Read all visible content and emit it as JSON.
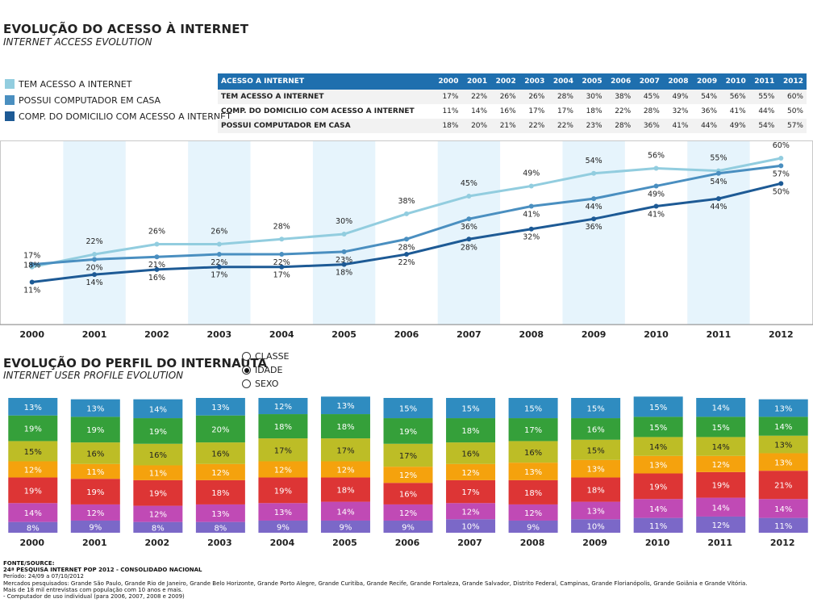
{
  "header": {
    "title": "EVOLUÇÃO DO ACESSO À INTERNET",
    "subtitle": "INTERNET ACCESS EVOLUTION"
  },
  "legend": [
    {
      "label": "TEM ACESSO A INTERNET",
      "color": "#92cddf"
    },
    {
      "label": "POSSUI COMPUTADOR EM CASA",
      "color": "#4a8fc0"
    },
    {
      "label": "COMP. DO DOMICILIO COM ACESSO A INTERNET",
      "color": "#1d5a95"
    }
  ],
  "table": {
    "header_label": "ACESSO A INTERNET",
    "years": [
      "2000",
      "2001",
      "2002",
      "2003",
      "2004",
      "2005",
      "2006",
      "2007",
      "2008",
      "2009",
      "2010",
      "2011",
      "2012"
    ],
    "rows": [
      {
        "label": "TEM ACESSO A INTERNET",
        "values": [
          "17%",
          "22%",
          "26%",
          "26%",
          "28%",
          "30%",
          "38%",
          "45%",
          "49%",
          "54%",
          "56%",
          "55%",
          "60%"
        ]
      },
      {
        "label": "COMP. DO DOMICILIO COM ACESSO A INTERNET",
        "values": [
          "11%",
          "14%",
          "16%",
          "17%",
          "17%",
          "18%",
          "22%",
          "28%",
          "32%",
          "36%",
          "41%",
          "44%",
          "50%"
        ]
      },
      {
        "label": "POSSUI COMPUTADOR EM CASA",
        "values": [
          "18%",
          "20%",
          "21%",
          "22%",
          "22%",
          "23%",
          "28%",
          "36%",
          "41%",
          "44%",
          "49%",
          "54%",
          "57%"
        ]
      }
    ]
  },
  "profile": {
    "title": "EVOLUÇÃO DO PERFIL DO INTERNAUTA",
    "subtitle": "INTERNET USER PROFILE EVOLUTION",
    "options": [
      {
        "label": "CLASSE",
        "selected": false
      },
      {
        "label": "IDADE",
        "selected": true
      },
      {
        "label": "SEXO",
        "selected": false
      }
    ]
  },
  "chart_data": [
    {
      "type": "line",
      "x": [
        "2000",
        "2001",
        "2002",
        "2003",
        "2004",
        "2005",
        "2006",
        "2007",
        "2008",
        "2009",
        "2010",
        "2011",
        "2012"
      ],
      "series": [
        {
          "name": "TEM ACESSO A INTERNET",
          "color": "#92cddf",
          "values": [
            17,
            22,
            26,
            26,
            28,
            30,
            38,
            45,
            49,
            54,
            56,
            55,
            60
          ]
        },
        {
          "name": "POSSUI COMPUTADOR EM CASA",
          "color": "#4a8fc0",
          "values": [
            18,
            20,
            21,
            22,
            22,
            23,
            28,
            36,
            41,
            44,
            49,
            54,
            57
          ]
        },
        {
          "name": "COMP. DO DOMICILIO COM ACESSO A INTERNET",
          "color": "#1d5a95",
          "values": [
            11,
            14,
            16,
            17,
            17,
            18,
            22,
            28,
            32,
            36,
            41,
            44,
            50
          ]
        }
      ],
      "ylim": [
        0,
        65
      ],
      "grid": false
    },
    {
      "type": "bar",
      "stacked": true,
      "categories": [
        "2000",
        "2001",
        "2002",
        "2003",
        "2004",
        "2005",
        "2006",
        "2007",
        "2008",
        "2009",
        "2010",
        "2011",
        "2012"
      ],
      "series": [
        {
          "color": "#7b68c8",
          "values": [
            8,
            9,
            8,
            8,
            9,
            9,
            9,
            10,
            9,
            10,
            11,
            12,
            11
          ]
        },
        {
          "color": "#c04ab5",
          "values": [
            14,
            12,
            12,
            13,
            13,
            14,
            12,
            12,
            12,
            13,
            14,
            14,
            14
          ]
        },
        {
          "color": "#dd3535",
          "values": [
            19,
            19,
            19,
            18,
            19,
            18,
            16,
            17,
            18,
            18,
            19,
            19,
            21
          ]
        },
        {
          "color": "#f5a20d",
          "values": [
            12,
            11,
            11,
            12,
            12,
            12,
            12,
            12,
            13,
            13,
            13,
            12,
            13
          ]
        },
        {
          "color": "#bdbd26",
          "values": [
            15,
            16,
            16,
            16,
            17,
            17,
            17,
            16,
            16,
            15,
            14,
            14,
            13
          ]
        },
        {
          "color": "#35a03a",
          "values": [
            19,
            19,
            19,
            20,
            18,
            18,
            19,
            18,
            17,
            16,
            15,
            15,
            14
          ]
        },
        {
          "color": "#2f8cc0",
          "values": [
            13,
            13,
            14,
            13,
            12,
            13,
            15,
            15,
            15,
            15,
            15,
            14,
            13
          ]
        }
      ]
    }
  ],
  "footer": {
    "lines": [
      "FONTE/SOURCE:",
      "24ª PESQUISA INTERNET POP 2012 - CONSOLIDADO NACIONAL",
      "Período: 24/09 a 07/10/2012",
      "Mercados pesquisados: Grande São Paulo, Grande Rio de Janeiro, Grande Belo Horizonte, Grande Porto Alegre, Grande Curitiba, Grande Recife, Grande Fortaleza, Grande Salvador, Distrito Federal, Campinas, Grande Florianópolis, Grande Goiânia e Grande Vitória.",
      "Mais de 18 mil entrevistas com população com 10 anos e mais.",
      " - Computador de uso individual (para 2006, 2007, 2008 e 2009)"
    ]
  }
}
